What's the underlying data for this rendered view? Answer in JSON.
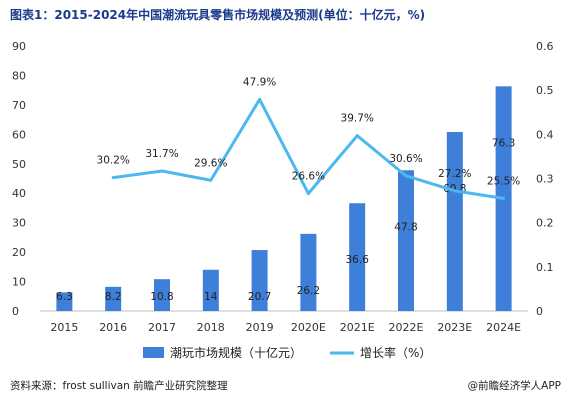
{
  "title": "图表1：2015-2024年中国潮流玩具零售市场规模及预测(单位：十亿元，%)",
  "source": "资料来源：frost sullivan 前瞻产业研究院整理",
  "brand": "@前瞻经济学人APP",
  "colors": {
    "bar": "#3d7fd9",
    "line": "#4bb8ee",
    "title": "#1a3a8a"
  },
  "chart_data": {
    "type": "bar",
    "categories": [
      "2015",
      "2016",
      "2017",
      "2018",
      "2019",
      "2020E",
      "2021E",
      "2022E",
      "2023E",
      "2024E"
    ],
    "series": [
      {
        "name": "潮玩市场规模（十亿元）",
        "type": "bar",
        "axis": "left",
        "values": [
          6.3,
          8.2,
          10.8,
          14,
          20.7,
          26.2,
          36.6,
          47.8,
          60.8,
          76.3
        ],
        "labels": [
          "6.3",
          "8.2",
          "10.8",
          "14",
          "20.7",
          "26.2",
          "36.6",
          "47.8",
          "60.8",
          "76.3"
        ]
      },
      {
        "name": "增长率（%）",
        "type": "line",
        "axis": "right",
        "values": [
          null,
          0.302,
          0.317,
          0.296,
          0.479,
          0.266,
          0.397,
          0.306,
          0.272,
          0.255
        ],
        "labels": [
          null,
          "30.2%",
          "31.7%",
          "29.6%",
          "47.9%",
          "26.6%",
          "39.7%",
          "30.6%",
          "27.2%",
          "25.5%"
        ]
      }
    ],
    "y_left": {
      "min": 0,
      "max": 90,
      "ticks": [
        "0",
        "10",
        "20",
        "30",
        "40",
        "50",
        "60",
        "70",
        "80",
        "90"
      ]
    },
    "y_right": {
      "min": 0,
      "max": 0.6,
      "ticks": [
        "0",
        "0.1",
        "0.2",
        "0.3",
        "0.4",
        "0.5",
        "0.6"
      ]
    },
    "legend": {
      "position": "bottom"
    },
    "grid": false
  }
}
